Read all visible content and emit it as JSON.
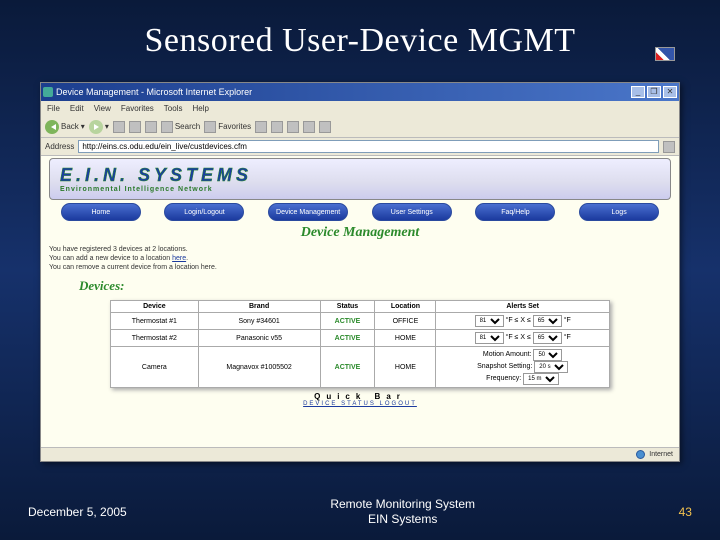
{
  "slide": {
    "title": "Sensored User-Device MGMT",
    "footer_date": "December 5, 2005",
    "footer_center_l1": "Remote Monitoring System",
    "footer_center_l2": "EIN Systems",
    "number": "43",
    "bg_colors": [
      "#0a1a3a",
      "#16316b"
    ],
    "title_color": "#ffffff"
  },
  "browser": {
    "window_title": "Device Management - Microsoft Internet Explorer",
    "menus": [
      "File",
      "Edit",
      "View",
      "Favorites",
      "Tools",
      "Help"
    ],
    "toolbar": {
      "back": "Back",
      "search": "Search",
      "favorites": "Favorites"
    },
    "address_label": "Address",
    "address_value": "http://eins.cs.odu.edu/ein_live/custdevices.cfm",
    "statusbar_text": "Internet"
  },
  "page": {
    "banner_title": "E.I.N. SYSTEMS",
    "banner_sub": "Environmental Intelligence Network",
    "nav": [
      {
        "label": "Home"
      },
      {
        "label": "Login/Logout"
      },
      {
        "label": "Device Management"
      },
      {
        "label": "User Settings"
      },
      {
        "label": "Faq/Help"
      },
      {
        "label": "Logs"
      }
    ],
    "heading": "Device Management",
    "info_l1a": "You have registered 3 devices at 2 locations.",
    "info_l2a": "You can add a new device to a location ",
    "info_l2b": "here",
    "info_l2c": ".",
    "info_l3": "You can remove a current device from a location here.",
    "devices_heading": "Devices:",
    "table": {
      "columns": [
        "Device",
        "Brand",
        "Status",
        "Location",
        "Alerts Set"
      ],
      "rows": [
        {
          "device": "Thermostat #1",
          "brand": "Sony #34601",
          "status": "ACTIVE",
          "location": "OFFICE",
          "alerts": {
            "type": "thermo",
            "hi": "81",
            "hi_unit": "°F",
            "lo": "65",
            "lo_unit": "°F"
          }
        },
        {
          "device": "Thermostat #2",
          "brand": "Panasonic v55",
          "status": "ACTIVE",
          "location": "HOME",
          "alerts": {
            "type": "thermo",
            "hi": "81",
            "hi_unit": "°F",
            "lo": "65",
            "lo_unit": "°F"
          }
        },
        {
          "device": "Camera",
          "brand": "Magnavox #1005502",
          "status": "ACTIVE",
          "location": "HOME",
          "alerts": {
            "type": "camera",
            "motion_l": "Motion Amount:",
            "motion_v": "50",
            "snap_l": "Snapshot Setting:",
            "snap_v": "20 s",
            "freq_l": "Frequency:",
            "freq_v": "15 m"
          }
        }
      ]
    },
    "quickbar_label": "Quick Bar",
    "quicklinks": "DEVICE  STATUS  LOGOUT"
  },
  "style": {
    "accent_blue": "#1b3a9e",
    "accent_green": "#2b8a2b",
    "page_bg": "#fefef0",
    "chrome_bg": "#ece9d8",
    "pill_gradient": [
      "#4a6fd0",
      "#1b3a9e"
    ]
  }
}
